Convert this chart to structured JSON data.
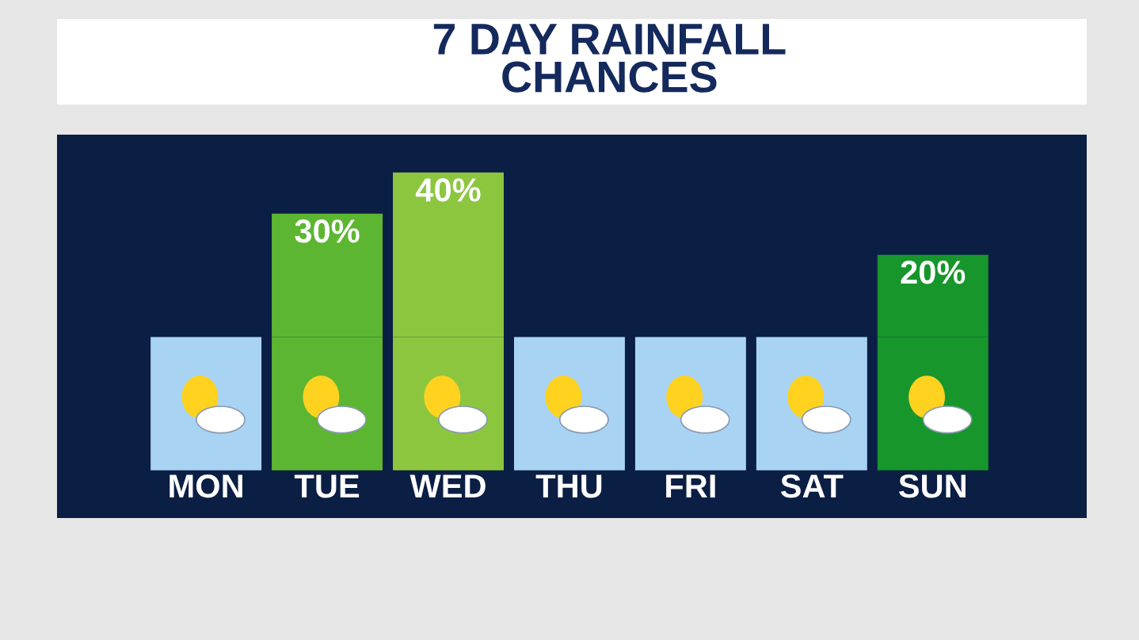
{
  "chart_data": {
    "type": "bar",
    "title": "7 DAY RAINFALL\nCHANCES",
    "categories": [
      "MON",
      "TUE",
      "WED",
      "THU",
      "FRI",
      "SAT",
      "SUN"
    ],
    "values": [
      0,
      30,
      40,
      0,
      0,
      0,
      20
    ],
    "value_labels": [
      null,
      "30%",
      "40%",
      null,
      null,
      null,
      "20%"
    ],
    "colors": [
      "#a9d3f3",
      "#5db631",
      "#8cc63f",
      "#a9d3f3",
      "#a9d3f3",
      "#a9d3f3",
      "#17962b"
    ],
    "legend": false
  }
}
